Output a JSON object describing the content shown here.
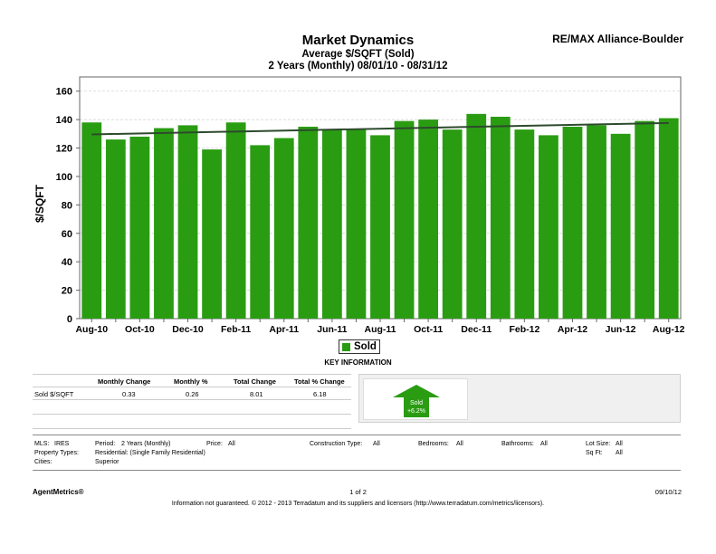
{
  "header": {
    "title": "Market Dynamics",
    "subtitle1": "Average $/SQFT (Sold)",
    "subtitle2": "2 Years (Monthly) 08/01/10 - 08/31/12",
    "brand": "RE/MAX Alliance-Boulder"
  },
  "chart_data": {
    "type": "bar",
    "title": "Market Dynamics",
    "ylabel": "$/SQFT",
    "ylim": [
      0,
      170
    ],
    "yticks": [
      0,
      20,
      40,
      60,
      80,
      100,
      120,
      140,
      160
    ],
    "grid": true,
    "categories": [
      "Aug-10",
      "Sep-10",
      "Oct-10",
      "Nov-10",
      "Dec-10",
      "Jan-11",
      "Feb-11",
      "Mar-11",
      "Apr-11",
      "May-11",
      "Jun-11",
      "Jul-11",
      "Aug-11",
      "Sep-11",
      "Oct-11",
      "Nov-11",
      "Dec-11",
      "Jan-12",
      "Feb-12",
      "Mar-12",
      "Apr-12",
      "May-12",
      "Jun-12",
      "Jul-12",
      "Aug-12"
    ],
    "xtick_labels": [
      "Aug-10",
      "",
      "Oct-10",
      "",
      "Dec-10",
      "",
      "Feb-11",
      "",
      "Apr-11",
      "",
      "Jun-11",
      "",
      "Aug-11",
      "",
      "Oct-11",
      "",
      "Dec-11",
      "",
      "Feb-12",
      "",
      "Apr-12",
      "",
      "Jun-12",
      "",
      "Aug-12"
    ],
    "series": [
      {
        "name": "Sold",
        "color": "#2a9c12",
        "values": [
          138,
          126,
          128,
          134,
          136,
          119,
          138,
          122,
          127,
          135,
          133,
          133,
          129,
          139,
          140,
          133,
          144,
          142,
          133,
          129,
          135,
          136,
          130,
          139,
          141
        ]
      }
    ],
    "trendline": {
      "start": 129.6,
      "end": 137.6,
      "color": "#2d4a2d"
    },
    "legend": {
      "label": "Sold",
      "position": "bottom"
    }
  },
  "key_info": {
    "title": "KEY INFORMATION",
    "headers": [
      "Monthly Change",
      "Monthly %",
      "Total Change",
      "Total % Change"
    ],
    "row_label": "Sold $/SQFT",
    "values": [
      "0.33",
      "0.26",
      "8.01",
      "6.18"
    ],
    "indicator": {
      "label": "Sold",
      "value": "+6.2%",
      "color": "#2a9c12"
    }
  },
  "criteria": {
    "mls_label": "MLS:",
    "mls_value": "IRES",
    "period_label": "Period:",
    "period_value": "2 Years (Monthly)",
    "price_label": "Price:",
    "price_value": "All",
    "construction_label": "Construction Type:",
    "construction_value": "All",
    "bedrooms_label": "Bedrooms:",
    "bedrooms_value": "All",
    "bathrooms_label": "Bathrooms:",
    "bathrooms_value": "All",
    "lotsize_label": "Lot Size:",
    "lotsize_value": "All",
    "proptype_label": "Property Types:",
    "proptype_value": "Residential: (Single Family Residential)",
    "sqft_label": "Sq Ft:",
    "sqft_value": "All",
    "cities_label": "Cities:",
    "cities_value": "Superior"
  },
  "footer": {
    "brand": "AgentMetrics®",
    "page": "1 of 2",
    "date": "09/10/12",
    "disclaimer": "Information not guaranteed.  © 2012 - 2013 Terradatum and its suppliers and licensors (http://www.terradatum.com/metrics/licensors)."
  }
}
